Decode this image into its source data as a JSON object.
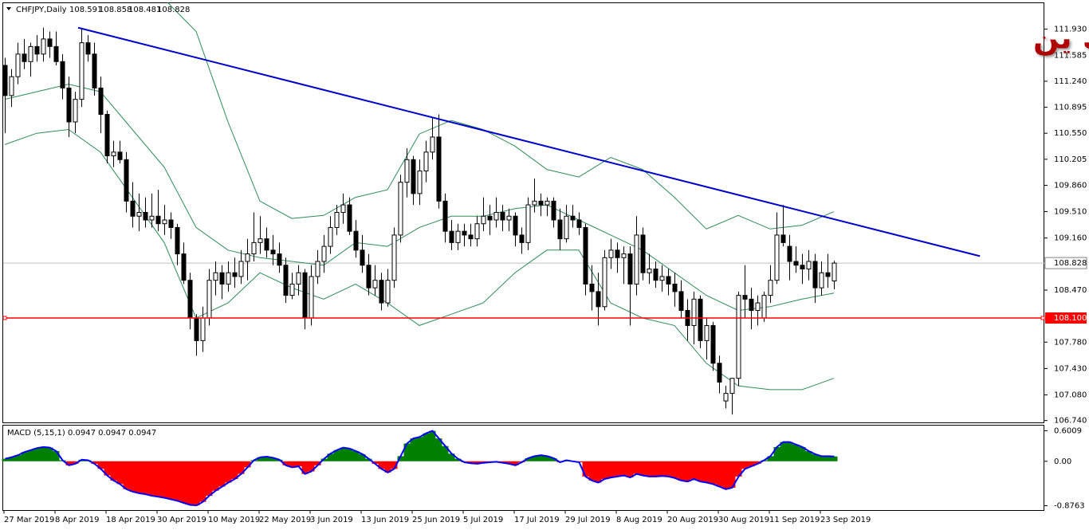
{
  "chart_data": {
    "type": "candlestick",
    "title": "CHFJPY,Daily",
    "last_ohlc": [
      108.591,
      108.858,
      108.481,
      108.828
    ],
    "overlay_title": "الفرنك ين",
    "categories": [
      "27 Mar 2019",
      null,
      null,
      null,
      null,
      null,
      null,
      null,
      "8 Apr 2019",
      null,
      null,
      null,
      null,
      null,
      null,
      null,
      "18 Apr 2019",
      null,
      null,
      null,
      null,
      null,
      null,
      null,
      "30 Apr 2019",
      null,
      null,
      null,
      null,
      null,
      null,
      null,
      "10 May 2019",
      null,
      null,
      null,
      null,
      null,
      null,
      null,
      "22 May 2019",
      null,
      null,
      null,
      null,
      null,
      null,
      null,
      "3 Jun 2019",
      null,
      null,
      null,
      null,
      null,
      null,
      null,
      "13 Jun 2019",
      null,
      null,
      null,
      null,
      null,
      null,
      null,
      "25 Jun 2019",
      null,
      null,
      null,
      null,
      null,
      null,
      null,
      "5 Jul 2019",
      null,
      null,
      null,
      null,
      null,
      null,
      null,
      "17 Jul 2019",
      null,
      null,
      null,
      null,
      null,
      null,
      null,
      "29 Jul 2019",
      null,
      null,
      null,
      null,
      null,
      null,
      null,
      "8 Aug 2019",
      null,
      null,
      null,
      null,
      null,
      null,
      null,
      "20 Aug 2019",
      null,
      null,
      null,
      null,
      null,
      null,
      null,
      "30 Aug 2019",
      null,
      null,
      null,
      null,
      null,
      null,
      null,
      "11 Sep 2019",
      null,
      null,
      null,
      null,
      null,
      null,
      null,
      "23 Sep 2019",
      null,
      null
    ],
    "ohlc": [
      [
        111.45,
        111.55,
        110.55,
        111.05
      ],
      [
        111.05,
        111.4,
        110.9,
        111.3
      ],
      [
        111.3,
        111.75,
        111.2,
        111.6
      ],
      [
        111.6,
        111.8,
        111.4,
        111.5
      ],
      [
        111.5,
        111.75,
        111.3,
        111.7
      ],
      [
        111.7,
        111.85,
        111.5,
        111.6
      ],
      [
        111.6,
        111.95,
        111.5,
        111.8
      ],
      [
        111.8,
        111.9,
        111.55,
        111.7
      ],
      [
        111.7,
        111.9,
        111.45,
        111.5
      ],
      [
        111.5,
        111.6,
        111.0,
        111.15
      ],
      [
        111.15,
        111.3,
        110.5,
        110.7
      ],
      [
        110.7,
        111.1,
        110.55,
        111.0
      ],
      [
        111.0,
        111.93,
        110.9,
        111.75
      ],
      [
        111.75,
        111.85,
        111.5,
        111.6
      ],
      [
        111.6,
        111.75,
        111.05,
        111.15
      ],
      [
        111.15,
        111.3,
        110.55,
        110.8
      ],
      [
        110.8,
        110.85,
        110.15,
        110.25
      ],
      [
        110.25,
        110.45,
        110.1,
        110.3
      ],
      [
        110.3,
        110.45,
        110.15,
        110.2
      ],
      [
        110.2,
        110.3,
        109.5,
        109.65
      ],
      [
        109.65,
        109.9,
        109.3,
        109.45
      ],
      [
        109.45,
        109.75,
        109.25,
        109.5
      ],
      [
        109.5,
        109.7,
        109.3,
        109.4
      ],
      [
        109.4,
        109.75,
        109.3,
        109.45
      ],
      [
        109.45,
        109.8,
        109.25,
        109.35
      ],
      [
        109.35,
        109.6,
        109.2,
        109.4
      ],
      [
        109.4,
        109.5,
        109.15,
        109.3
      ],
      [
        109.3,
        109.35,
        108.8,
        108.95
      ],
      [
        108.95,
        109.1,
        108.55,
        108.6
      ],
      [
        108.6,
        108.7,
        107.95,
        108.1
      ],
      [
        108.1,
        108.15,
        107.6,
        107.8
      ],
      [
        107.8,
        108.25,
        107.65,
        108.1
      ],
      [
        108.1,
        108.75,
        108.0,
        108.6
      ],
      [
        108.6,
        108.85,
        108.4,
        108.7
      ],
      [
        108.7,
        108.8,
        108.35,
        108.55
      ],
      [
        108.55,
        108.85,
        108.45,
        108.7
      ],
      [
        108.7,
        108.9,
        108.5,
        108.65
      ],
      [
        108.65,
        109.0,
        108.55,
        108.85
      ],
      [
        108.85,
        109.15,
        108.6,
        108.95
      ],
      [
        108.95,
        109.5,
        108.85,
        109.1
      ],
      [
        109.1,
        109.45,
        108.95,
        109.15
      ],
      [
        109.15,
        109.3,
        108.9,
        109.0
      ],
      [
        109.0,
        109.2,
        108.8,
        108.95
      ],
      [
        108.95,
        109.1,
        108.7,
        108.8
      ],
      [
        108.8,
        108.9,
        108.3,
        108.4
      ],
      [
        108.4,
        108.7,
        108.35,
        108.55
      ],
      [
        108.55,
        108.8,
        108.4,
        108.7
      ],
      [
        108.7,
        108.75,
        107.95,
        108.1
      ],
      [
        108.1,
        108.8,
        108.0,
        108.65
      ],
      [
        108.65,
        109.0,
        108.55,
        108.85
      ],
      [
        108.85,
        109.2,
        108.7,
        109.05
      ],
      [
        109.05,
        109.45,
        108.95,
        109.3
      ],
      [
        109.3,
        109.6,
        109.2,
        109.5
      ],
      [
        109.5,
        109.75,
        109.35,
        109.6
      ],
      [
        109.6,
        109.7,
        109.2,
        109.25
      ],
      [
        109.25,
        109.4,
        108.9,
        109.0
      ],
      [
        109.0,
        109.2,
        108.7,
        108.8
      ],
      [
        108.8,
        108.95,
        108.4,
        108.5
      ],
      [
        108.5,
        108.8,
        108.4,
        108.6
      ],
      [
        108.6,
        108.7,
        108.2,
        108.3
      ],
      [
        108.3,
        108.75,
        108.25,
        108.6
      ],
      [
        108.6,
        109.3,
        108.5,
        109.2
      ],
      [
        109.2,
        110.0,
        109.1,
        109.9
      ],
      [
        109.9,
        110.35,
        109.7,
        110.2
      ],
      [
        110.2,
        110.25,
        109.6,
        109.75
      ],
      [
        109.75,
        110.2,
        109.6,
        110.05
      ],
      [
        110.05,
        110.45,
        109.9,
        110.3
      ],
      [
        110.3,
        110.75,
        110.2,
        110.5
      ],
      [
        110.5,
        110.8,
        109.55,
        109.65
      ],
      [
        109.65,
        109.75,
        109.1,
        109.25
      ],
      [
        109.25,
        109.4,
        109.0,
        109.1
      ],
      [
        109.1,
        109.35,
        109.0,
        109.25
      ],
      [
        109.25,
        109.35,
        109.05,
        109.2
      ],
      [
        109.2,
        109.35,
        109.05,
        109.15
      ],
      [
        109.15,
        109.45,
        109.05,
        109.35
      ],
      [
        109.35,
        109.7,
        109.25,
        109.45
      ],
      [
        109.45,
        109.6,
        109.2,
        109.4
      ],
      [
        109.4,
        109.7,
        109.3,
        109.5
      ],
      [
        109.5,
        109.6,
        109.25,
        109.4
      ],
      [
        109.4,
        109.55,
        109.25,
        109.45
      ],
      [
        109.45,
        109.5,
        109.05,
        109.2
      ],
      [
        109.2,
        109.3,
        108.95,
        109.1
      ],
      [
        109.1,
        109.7,
        109.0,
        109.6
      ],
      [
        109.6,
        109.95,
        109.5,
        109.65
      ],
      [
        109.65,
        109.75,
        109.45,
        109.6
      ],
      [
        109.6,
        109.7,
        109.45,
        109.65
      ],
      [
        109.65,
        109.7,
        109.3,
        109.4
      ],
      [
        109.4,
        109.55,
        109.0,
        109.15
      ],
      [
        109.15,
        109.6,
        109.1,
        109.45
      ],
      [
        109.45,
        109.6,
        109.3,
        109.4
      ],
      [
        109.4,
        109.5,
        109.2,
        109.3
      ],
      [
        109.3,
        109.35,
        108.4,
        108.55
      ],
      [
        108.55,
        108.8,
        108.2,
        108.45
      ],
      [
        108.45,
        108.7,
        108.0,
        108.25
      ],
      [
        108.25,
        109.0,
        108.2,
        108.9
      ],
      [
        108.9,
        109.15,
        108.75,
        109.0
      ],
      [
        109.0,
        109.1,
        108.7,
        108.9
      ],
      [
        108.9,
        109.05,
        108.55,
        108.95
      ],
      [
        108.95,
        109.05,
        108.0,
        108.55
      ],
      [
        108.55,
        109.45,
        108.4,
        109.2
      ],
      [
        109.2,
        109.3,
        108.6,
        108.7
      ],
      [
        108.7,
        108.95,
        108.55,
        108.75
      ],
      [
        108.75,
        108.85,
        108.5,
        108.6
      ],
      [
        108.6,
        108.8,
        108.45,
        108.65
      ],
      [
        108.65,
        108.75,
        108.4,
        108.55
      ],
      [
        108.55,
        108.7,
        108.25,
        108.45
      ],
      [
        108.45,
        108.6,
        108.1,
        108.2
      ],
      [
        108.2,
        108.35,
        107.8,
        108.0
      ],
      [
        108.0,
        108.45,
        107.75,
        108.35
      ],
      [
        108.35,
        108.4,
        107.7,
        107.8
      ],
      [
        107.8,
        108.1,
        107.55,
        108.0
      ],
      [
        108.0,
        108.05,
        107.4,
        107.5
      ],
      [
        107.5,
        107.6,
        107.1,
        107.25
      ],
      [
        107.0,
        107.2,
        106.9,
        107.1
      ],
      [
        107.1,
        107.3,
        106.82,
        107.3
      ],
      [
        107.3,
        108.45,
        107.2,
        108.4
      ],
      [
        108.4,
        108.8,
        108.1,
        108.35
      ],
      [
        108.35,
        108.5,
        107.95,
        108.2
      ],
      [
        108.2,
        108.4,
        108.0,
        108.3
      ],
      [
        108.1,
        108.45,
        108.05,
        108.4
      ],
      [
        108.4,
        108.8,
        108.3,
        108.6
      ],
      [
        108.6,
        109.5,
        108.55,
        109.2
      ],
      [
        109.2,
        109.6,
        109.05,
        109.1
      ],
      [
        109.05,
        109.2,
        108.6,
        108.85
      ],
      [
        108.85,
        109.05,
        108.7,
        108.8
      ],
      [
        108.8,
        108.95,
        108.55,
        108.75
      ],
      [
        108.75,
        109.0,
        108.6,
        108.85
      ],
      [
        108.85,
        108.95,
        108.3,
        108.5
      ],
      [
        108.5,
        108.85,
        108.4,
        108.7
      ],
      [
        108.7,
        108.95,
        108.5,
        108.65
      ],
      [
        108.591,
        108.858,
        108.481,
        108.828
      ]
    ],
    "up_color": "#ffffff",
    "down_color": "#000000",
    "bands": {
      "color": "#2e8b57",
      "x": [
        0,
        5,
        10,
        15,
        20,
        25,
        30,
        35,
        40,
        45,
        50,
        55,
        60,
        65,
        70,
        75,
        80,
        85,
        90,
        95,
        100,
        105,
        110,
        115,
        120,
        125,
        130
      ],
      "upper": [
        112.5,
        112.6,
        112.7,
        112.8,
        112.6,
        112.33,
        111.9,
        110.7,
        109.65,
        109.42,
        109.46,
        109.7,
        109.8,
        110.54,
        110.72,
        110.6,
        110.38,
        110.07,
        109.97,
        110.23,
        110.07,
        109.7,
        109.28,
        109.46,
        109.28,
        109.33,
        109.51
      ],
      "middle": [
        111.0,
        111.1,
        111.2,
        111.1,
        110.6,
        110.1,
        109.3,
        109.0,
        108.9,
        108.85,
        108.8,
        109.1,
        109.05,
        109.3,
        109.45,
        109.45,
        109.55,
        109.6,
        109.4,
        109.2,
        109.0,
        108.7,
        108.4,
        108.2,
        108.25,
        108.35,
        108.43
      ],
      "lower": [
        110.4,
        110.55,
        110.6,
        110.3,
        109.7,
        109.1,
        108.1,
        108.3,
        108.7,
        108.5,
        108.35,
        108.55,
        108.3,
        108.0,
        108.15,
        108.3,
        108.7,
        109.0,
        109.0,
        108.3,
        108.1,
        108.0,
        107.5,
        107.2,
        107.15,
        107.15,
        107.3
      ]
    },
    "trendline": {
      "x": [
        11.5,
        152.9
      ],
      "y": [
        111.95,
        108.92
      ],
      "color": "#0000cc"
    },
    "current_price": 108.828,
    "level": {
      "value": 108.1,
      "label": "108.100",
      "color": "#ff0000"
    },
    "ylim": [
      106.71,
      112.28
    ],
    "yticks": [
      {
        "value": 111.93,
        "label": "111.930"
      },
      {
        "value": 111.585,
        "label": "111.585"
      },
      {
        "value": 111.24,
        "label": "111.240"
      },
      {
        "value": 110.895,
        "label": "110.895"
      },
      {
        "value": 110.55,
        "label": "110.550"
      },
      {
        "value": 110.205,
        "label": "110.205"
      },
      {
        "value": 109.86,
        "label": "109.860"
      },
      {
        "value": 109.51,
        "label": "109.510"
      },
      {
        "value": 109.16,
        "label": "109.160"
      },
      {
        "value": 108.47,
        "label": "108.470"
      },
      {
        "value": 107.78,
        "label": "107.780"
      },
      {
        "value": 107.43,
        "label": "107.430"
      },
      {
        "value": 107.08,
        "label": "107.080"
      },
      {
        "value": 106.74,
        "label": "106.740"
      }
    ],
    "macd": {
      "label": "MACD (5,15,1) 0.0947 0.0947 0.0947",
      "pos_color": "#008000",
      "neg_color": "#ff0000",
      "line_color": "#0000ff",
      "ylim": [
        -0.97,
        0.711
      ],
      "yticks": [
        0.6009,
        {
          "value": 0,
          "label": "0.00"
        },
        -0.8763
      ],
      "values": [
        0.05,
        0.08,
        0.12,
        0.18,
        0.22,
        0.26,
        0.28,
        0.27,
        0.2,
        0.02,
        -0.08,
        -0.05,
        0.03,
        0.02,
        -0.05,
        -0.15,
        -0.28,
        -0.38,
        -0.45,
        -0.55,
        -0.6,
        -0.63,
        -0.65,
        -0.68,
        -0.7,
        -0.72,
        -0.75,
        -0.78,
        -0.82,
        -0.86,
        -0.87,
        -0.8,
        -0.68,
        -0.58,
        -0.5,
        -0.42,
        -0.35,
        -0.25,
        -0.12,
        0.02,
        0.08,
        0.09,
        0.07,
        0.03,
        -0.08,
        -0.12,
        -0.1,
        -0.25,
        -0.2,
        -0.08,
        0.05,
        0.15,
        0.22,
        0.27,
        0.25,
        0.2,
        0.14,
        0.05,
        -0.05,
        -0.15,
        -0.22,
        -0.15,
        0.1,
        0.35,
        0.45,
        0.48,
        0.55,
        0.6,
        0.45,
        0.3,
        0.15,
        0.05,
        -0.02,
        -0.04,
        -0.05,
        -0.03,
        -0.02,
        -0.01,
        -0.03,
        -0.05,
        -0.08,
        -0.02,
        0.06,
        0.1,
        0.12,
        0.1,
        0.06,
        -0.02,
        0.02,
        0.0,
        -0.02,
        -0.3,
        -0.38,
        -0.42,
        -0.35,
        -0.32,
        -0.3,
        -0.28,
        -0.32,
        -0.25,
        -0.28,
        -0.3,
        -0.3,
        -0.29,
        -0.3,
        -0.33,
        -0.38,
        -0.4,
        -0.35,
        -0.4,
        -0.42,
        -0.45,
        -0.5,
        -0.55,
        -0.52,
        -0.3,
        -0.15,
        -0.1,
        -0.05,
        0.02,
        0.1,
        0.28,
        0.38,
        0.38,
        0.33,
        0.28,
        0.2,
        0.14,
        0.1,
        0.1,
        0.0947
      ]
    }
  }
}
